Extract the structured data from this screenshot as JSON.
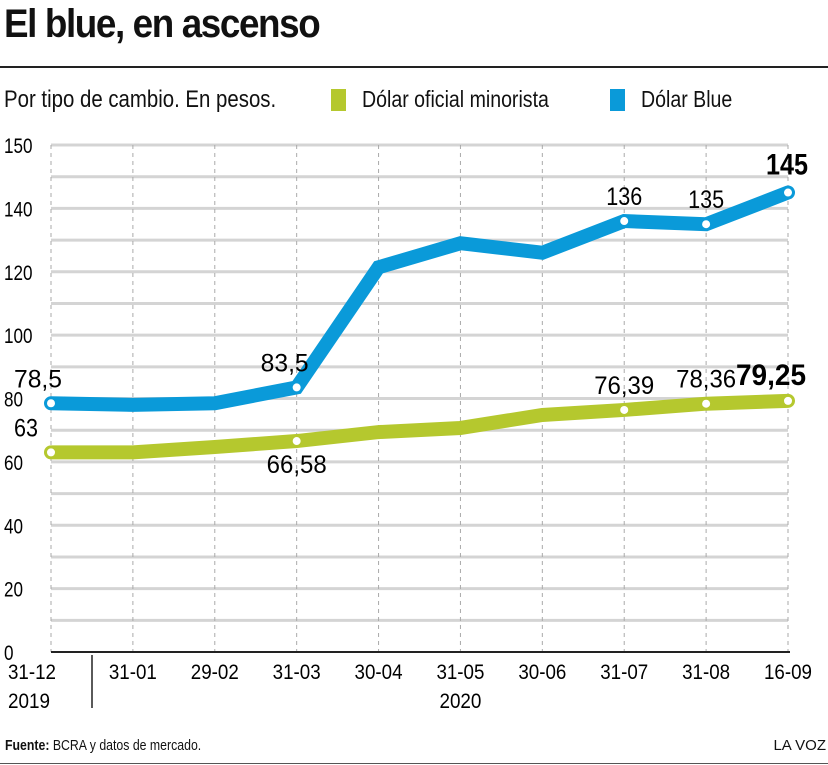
{
  "title": "El blue, en ascenso",
  "subtitle": "Por tipo de cambio. En pesos.",
  "source_label": "Fuente:",
  "source_text": "BCRA y datos de mercado.",
  "brand": "LA VOZ",
  "chart_data": {
    "type": "line",
    "title": "El blue, en ascenso",
    "subtitle": "Por tipo de cambio. En pesos.",
    "categories": [
      "31-12",
      "31-01",
      "29-02",
      "31-03",
      "30-04",
      "31-05",
      "30-06",
      "31-07",
      "31-08",
      "16-09"
    ],
    "year_labels": [
      {
        "text": "2019",
        "at": "31-12"
      },
      {
        "text": "2020",
        "at": "31-05"
      }
    ],
    "y_tick_labels": [
      "0",
      "20",
      "40",
      "60",
      "80",
      "100",
      "120",
      "140",
      "150"
    ],
    "ylim": [
      0,
      160
    ],
    "grid": true,
    "legend_placement": "top",
    "series": [
      {
        "name": "Dólar oficial minorista",
        "color": "#b5c82e",
        "values": [
          63,
          63,
          64.7,
          66.58,
          69.4,
          70.7,
          74.8,
          76.39,
          78.36,
          79.25
        ],
        "labels": [
          "63",
          null,
          null,
          "66,58",
          null,
          null,
          null,
          "76,39",
          "78,36",
          "79,25"
        ]
      },
      {
        "name": "Dólar Blue",
        "color": "#0a9ad9",
        "values": [
          78.5,
          78,
          78.5,
          83.5,
          121.4,
          129,
          126,
          136,
          135,
          145
        ],
        "labels": [
          "78,5",
          null,
          null,
          "83,5",
          null,
          null,
          null,
          "136",
          "135",
          "145"
        ]
      }
    ]
  }
}
